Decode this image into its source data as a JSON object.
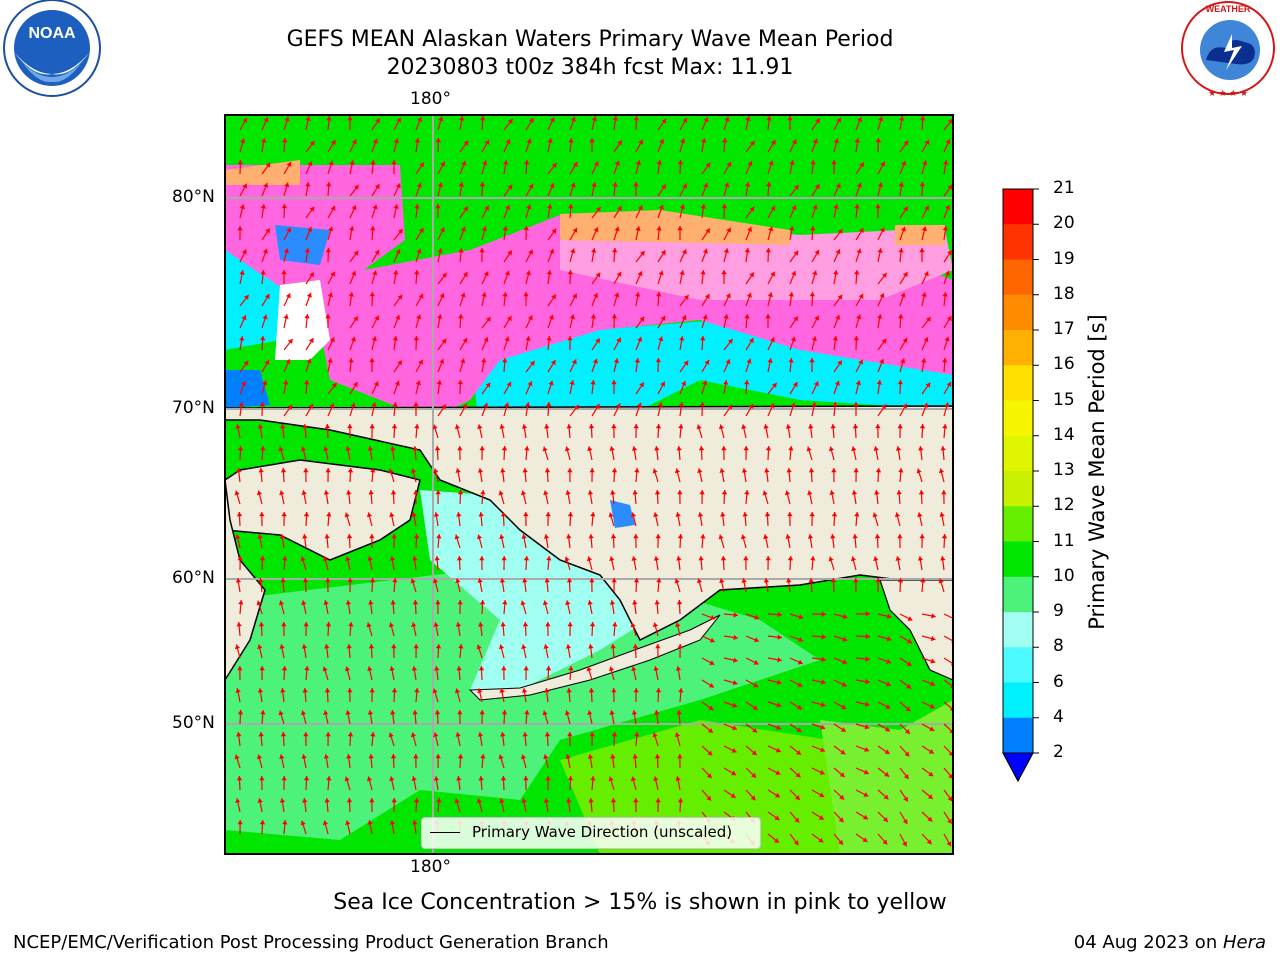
{
  "title": {
    "line1": "GEFS MEAN Alaskan Waters Primary Wave Mean Period",
    "line2": "20230803 t00z 384h fcst   Max: 11.91"
  },
  "logos": {
    "left": "NOAA",
    "right": "NATIONAL WEATHER SERVICE"
  },
  "map": {
    "lon_label_top": "180°",
    "lon_label_bottom": "180°",
    "lat_labels": [
      "80°N",
      "70°N",
      "60°N",
      "50°N"
    ],
    "legend_label": "Primary Wave Direction (unscaled)",
    "land_color": "#efecdc",
    "arrow_color": "#ff0000"
  },
  "colorbar": {
    "label": "Primary Wave Mean Period [s]",
    "ticks": [
      "21",
      "20",
      "19",
      "18",
      "17",
      "16",
      "15",
      "14",
      "13",
      "12",
      "11",
      "10",
      "9",
      "8",
      "6",
      "4",
      "2"
    ],
    "colors": [
      "#ff0000",
      "#ff3300",
      "#ff6600",
      "#ff8c00",
      "#ffb000",
      "#ffe000",
      "#f5f500",
      "#e0f500",
      "#c8f000",
      "#66ee00",
      "#00e600",
      "#4cf27a",
      "#a0fff0",
      "#4dfaff",
      "#00f0ff",
      "#0080ff"
    ],
    "under_color": "#0000ff"
  },
  "sea_ice_note": "Sea Ice Concentration > 15% is shown in pink to yellow",
  "footer": {
    "left": "NCEP/EMC/Verification Post Processing Product Generation Branch",
    "right_date": "04 Aug 2023 on ",
    "right_host": "Hera"
  }
}
